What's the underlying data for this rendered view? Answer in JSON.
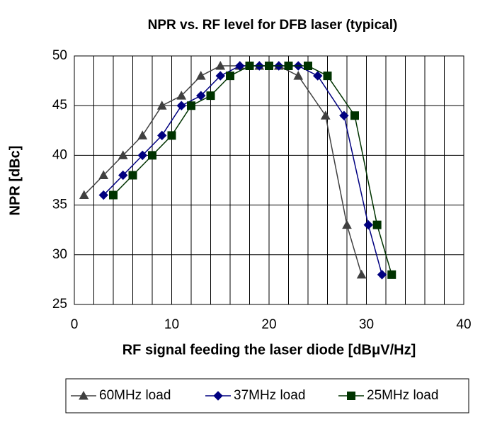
{
  "chart_data": {
    "type": "scatter",
    "title": "NPR vs. RF level for DFB laser (typical)",
    "x_label": "RF signal feeding the laser diode [dBμV/Hz]",
    "y_label": "NPR [dBc]",
    "xlim": [
      0,
      40
    ],
    "xticks": [
      0,
      10,
      20,
      30,
      40
    ],
    "xgrid": [
      0,
      2,
      4,
      6,
      8,
      10,
      12,
      14,
      16,
      18,
      20,
      22,
      24,
      26,
      28,
      30,
      32,
      34,
      36,
      38,
      40
    ],
    "ylim": [
      25,
      50
    ],
    "yticks": [
      25,
      30,
      35,
      40,
      45,
      50
    ],
    "grid": true,
    "legend": "bottom",
    "series": [
      {
        "name": "60MHz load",
        "color": "#404040",
        "marker": "triangle",
        "x": [
          1,
          3,
          5,
          7,
          9,
          11,
          13,
          15,
          17,
          19,
          21,
          23,
          25.8,
          28,
          29.5
        ],
        "values": [
          36,
          38,
          40,
          42,
          45,
          46,
          48,
          49,
          49,
          49,
          49,
          48,
          44,
          33,
          28
        ]
      },
      {
        "name": "37MHz load",
        "color": "#000080",
        "marker": "diamond",
        "x": [
          3,
          5,
          7,
          9,
          11,
          13,
          15,
          17,
          19,
          21,
          23,
          25,
          27.7,
          30.2,
          31.6
        ],
        "values": [
          36,
          38,
          40,
          42,
          45,
          46,
          48,
          49,
          49,
          49,
          49,
          48,
          44,
          33,
          28
        ]
      },
      {
        "name": "25MHz load",
        "color": "#003300",
        "marker": "square",
        "x": [
          4,
          6,
          8,
          10,
          12,
          14,
          16,
          18,
          20,
          22,
          24,
          26,
          28.8,
          31.1,
          32.6
        ],
        "values": [
          36,
          38,
          40,
          42,
          45,
          46,
          48,
          49,
          49,
          49,
          49,
          48,
          44,
          33,
          28
        ]
      }
    ]
  }
}
